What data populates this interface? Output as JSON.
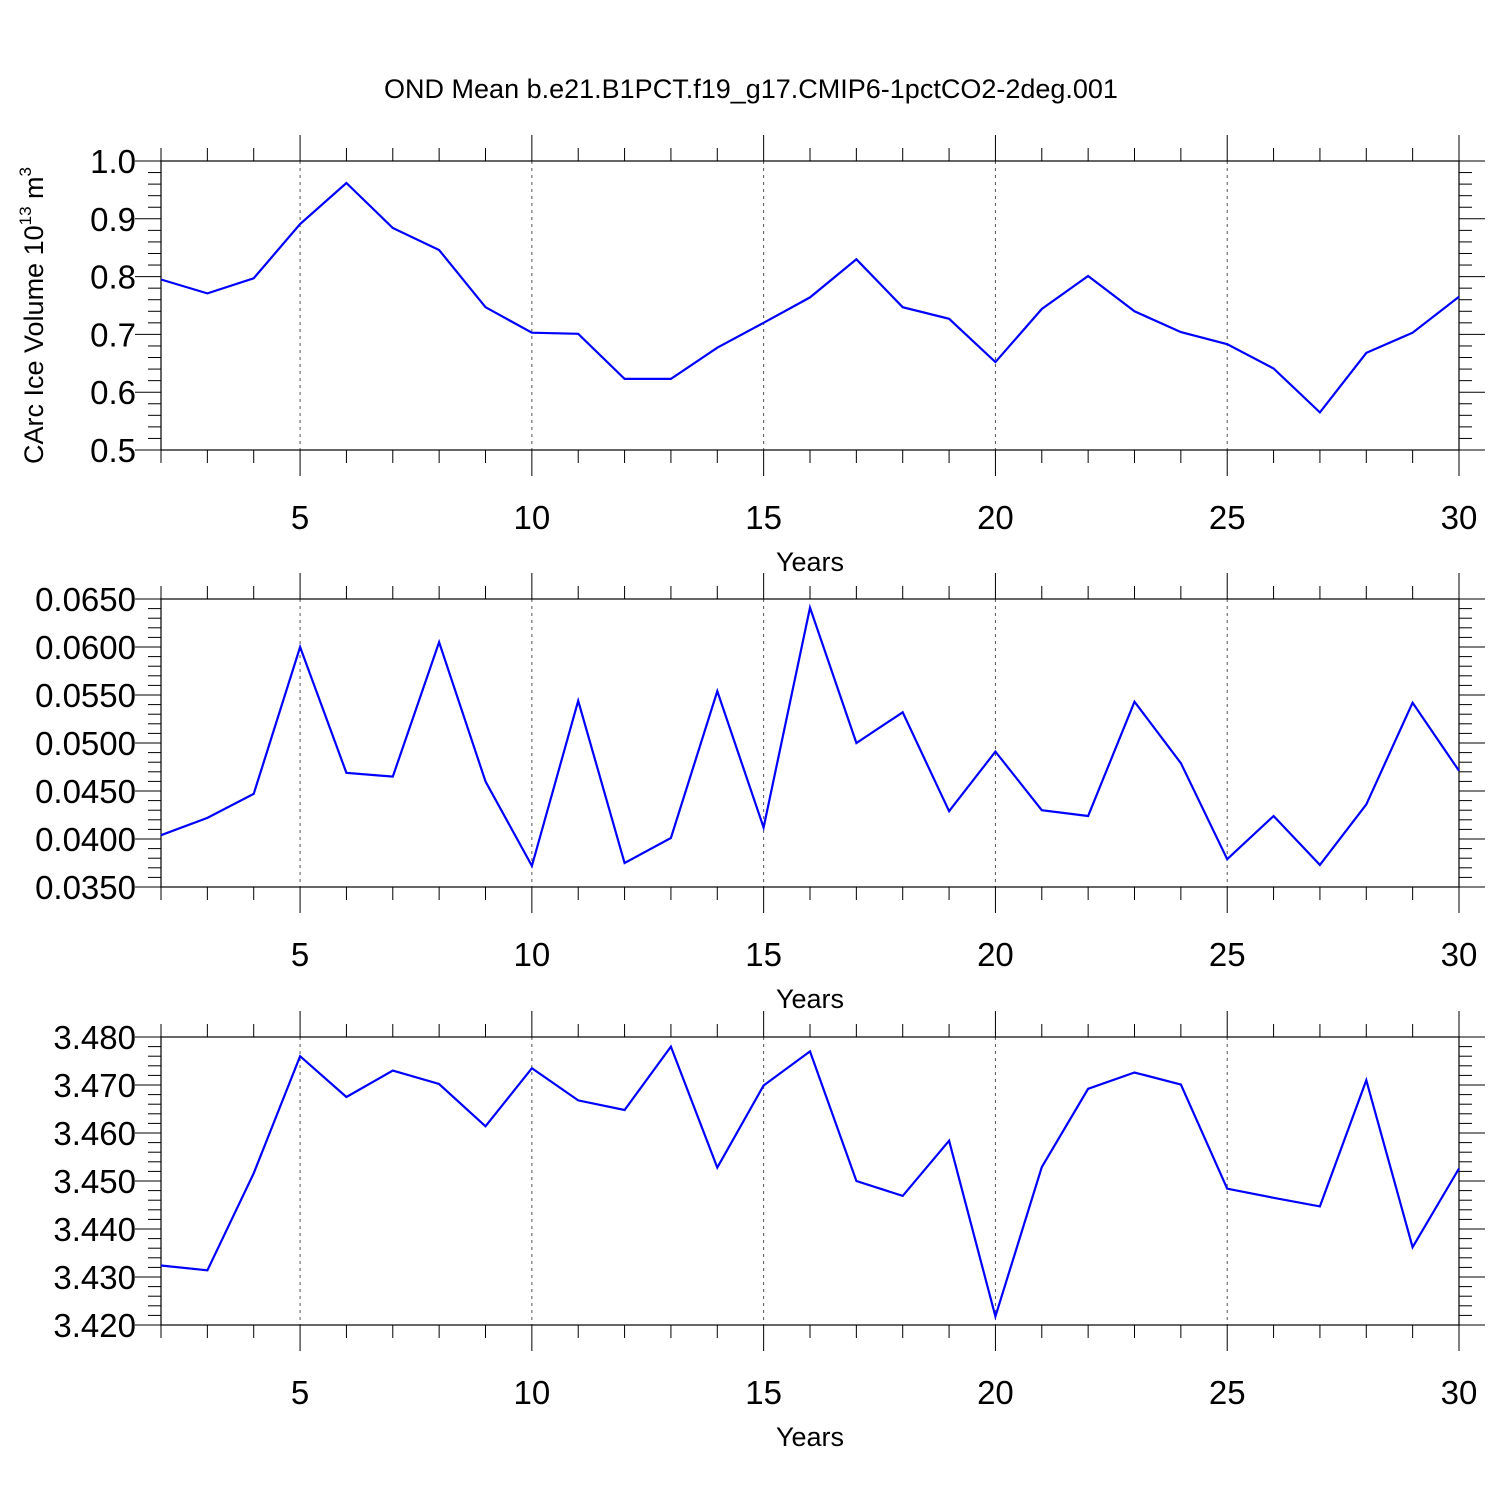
{
  "title": "OND Mean b.e21.B1PCT.f19_g17.CMIP6-1pctCO2-2deg.001",
  "chart_data": [
    {
      "type": "line",
      "ylabel_text": "CArc Ice Volume 10",
      "ylabel_exp": "13",
      "ylabel_unit": " m",
      "ylabel_unit_exp": "3",
      "xlabel": "Years",
      "xlim": [
        2,
        30
      ],
      "ylim": [
        0.5,
        1.0
      ],
      "y_ticks": [
        0.5,
        0.6,
        0.7,
        0.8,
        0.9,
        1.0
      ],
      "y_tick_labels": [
        "0.5",
        "0.6",
        "0.7",
        "0.8",
        "0.9",
        "1.0"
      ],
      "y_minor_step": 0.02,
      "x_ticks": [
        5,
        10,
        15,
        20,
        25,
        30
      ],
      "x_tick_labels": [
        "5",
        "10",
        "15",
        "20",
        "25",
        "30"
      ],
      "grid_x": [
        5,
        10,
        15,
        20,
        25
      ],
      "color": "#0000ff",
      "x": [
        2,
        3,
        4,
        5,
        6,
        7,
        8,
        9,
        10,
        11,
        12,
        13,
        14,
        15,
        16,
        17,
        18,
        19,
        20,
        21,
        22,
        23,
        24,
        25,
        26,
        27,
        28,
        29,
        30
      ],
      "values": [
        0.795,
        0.771,
        0.797,
        0.891,
        0.962,
        0.884,
        0.846,
        0.747,
        0.703,
        0.701,
        0.623,
        0.623,
        0.677,
        0.72,
        0.764,
        0.83,
        0.747,
        0.727,
        0.652,
        0.744,
        0.801,
        0.74,
        0.704,
        0.683,
        0.641,
        0.565,
        0.668,
        0.703,
        0.765
      ]
    },
    {
      "type": "line",
      "ylabel_text": "",
      "ylabel_exp": "",
      "ylabel_unit": "",
      "ylabel_unit_exp": "",
      "xlabel": "Years",
      "xlim": [
        2,
        30
      ],
      "ylim": [
        0.035,
        0.065
      ],
      "y_ticks": [
        0.035,
        0.04,
        0.045,
        0.05,
        0.055,
        0.06,
        0.065
      ],
      "y_tick_labels": [
        "0.0350",
        "0.0400",
        "0.0450",
        "0.0500",
        "0.0550",
        "0.0600",
        "0.0650"
      ],
      "y_minor_step": 0.001,
      "x_ticks": [
        5,
        10,
        15,
        20,
        25,
        30
      ],
      "x_tick_labels": [
        "5",
        "10",
        "15",
        "20",
        "25",
        "30"
      ],
      "grid_x": [
        5,
        10,
        15,
        20,
        25
      ],
      "color": "#0000ff",
      "x": [
        2,
        3,
        4,
        5,
        6,
        7,
        8,
        9,
        10,
        11,
        12,
        13,
        14,
        15,
        16,
        17,
        18,
        19,
        20,
        21,
        22,
        23,
        24,
        25,
        26,
        27,
        28,
        29,
        30
      ],
      "values": [
        0.0404,
        0.0422,
        0.0447,
        0.06,
        0.0469,
        0.0465,
        0.0605,
        0.046,
        0.0372,
        0.0544,
        0.0375,
        0.0401,
        0.0554,
        0.0412,
        0.0641,
        0.05,
        0.0532,
        0.0429,
        0.0491,
        0.043,
        0.0424,
        0.0543,
        0.0479,
        0.0379,
        0.0424,
        0.0373,
        0.0436,
        0.0542,
        0.0471
      ]
    },
    {
      "type": "line",
      "ylabel_text": "",
      "ylabel_exp": "",
      "ylabel_unit": "",
      "ylabel_unit_exp": "",
      "xlabel": "Years",
      "xlim": [
        2,
        30
      ],
      "ylim": [
        3.42,
        3.48
      ],
      "y_ticks": [
        3.42,
        3.43,
        3.44,
        3.45,
        3.46,
        3.47,
        3.48
      ],
      "y_tick_labels": [
        "3.420",
        "3.430",
        "3.440",
        "3.450",
        "3.460",
        "3.470",
        "3.480"
      ],
      "y_minor_step": 0.002,
      "x_ticks": [
        5,
        10,
        15,
        20,
        25,
        30
      ],
      "x_tick_labels": [
        "5",
        "10",
        "15",
        "20",
        "25",
        "30"
      ],
      "grid_x": [
        5,
        10,
        15,
        20,
        25
      ],
      "color": "#0000ff",
      "x": [
        2,
        3,
        4,
        5,
        6,
        7,
        8,
        9,
        10,
        11,
        12,
        13,
        14,
        15,
        16,
        17,
        18,
        19,
        20,
        21,
        22,
        23,
        24,
        25,
        26,
        27,
        28,
        29,
        30
      ],
      "values": [
        3.4324,
        3.4314,
        3.4516,
        3.476,
        3.4675,
        3.473,
        3.4702,
        3.4614,
        3.4735,
        3.4668,
        3.4648,
        3.478,
        3.4528,
        3.4699,
        3.477,
        3.45,
        3.4469,
        3.4584,
        3.4218,
        3.4529,
        3.4692,
        3.4726,
        3.4701,
        3.4484,
        3.4465,
        3.4447,
        3.471,
        3.4362,
        3.4526
      ]
    }
  ]
}
